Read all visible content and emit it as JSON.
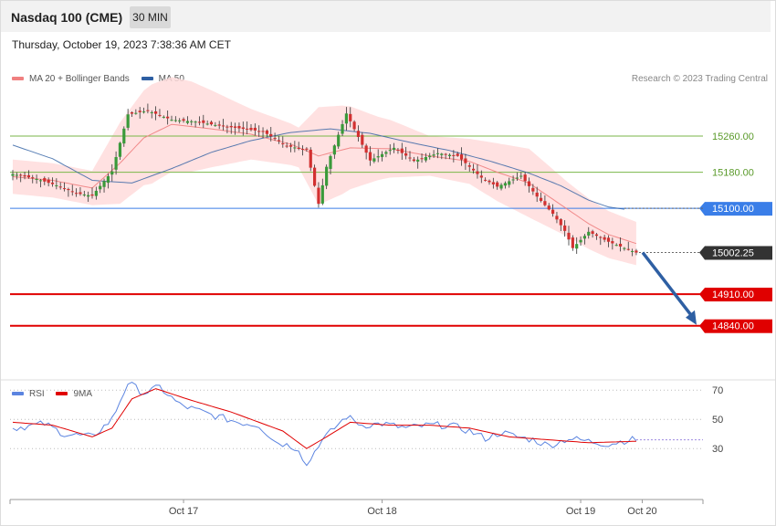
{
  "header": {
    "title": "Nasdaq 100 (CME)",
    "interval": "30 MIN",
    "datetime": "Thursday, October 19, 2023 7:38:36 AM CET",
    "copyright": "Research © 2023 Trading Central"
  },
  "colors": {
    "ma20": "#f08080",
    "ma50": "#2e5fa3",
    "bands_fill": "#ffdcdc",
    "candle_up": "#3a9a3a",
    "candle_down": "#d23030",
    "resistance": "#7ab648",
    "pivot": "#3a7ee8",
    "support": "#e00000",
    "last_price": "#333333",
    "rsi": "#5b84e0",
    "rsi_ma": "#e00000",
    "arrow": "#2e5fa3"
  },
  "chart_data": [
    {
      "type": "candlestick",
      "title": "Nasdaq 100 (CME)",
      "interval": "30 MIN",
      "legend": [
        {
          "name": "MA 20 + Bollinger Bands",
          "color": "#f08080"
        },
        {
          "name": "MA 50",
          "color": "#2e5fa3"
        }
      ],
      "x_labels": [
        "Oct 17",
        "Oct 18",
        "Oct 19",
        "Oct 20"
      ],
      "ylim": [
        14830,
        15440
      ],
      "levels": [
        {
          "label": "15260.00",
          "value": 15260.0,
          "role": "resistance",
          "color": "#7ab648"
        },
        {
          "label": "15180.00",
          "value": 15180.0,
          "role": "resistance",
          "color": "#7ab648"
        },
        {
          "label": "15100.00",
          "value": 15100.0,
          "role": "pivot",
          "color": "#3a7ee8"
        },
        {
          "label": "14910.00",
          "value": 14910.0,
          "role": "support",
          "color": "#e00000"
        },
        {
          "label": "14840.00",
          "value": 14840.0,
          "role": "support",
          "color": "#e00000"
        }
      ],
      "last_price": {
        "label": "15002.25",
        "value": 15002.25
      },
      "forecast_arrow": {
        "from": 15002,
        "to": 14840,
        "direction": "down"
      },
      "close_anchors": [
        [
          0,
          15176
        ],
        [
          6,
          15165
        ],
        [
          12,
          15148
        ],
        [
          16,
          15133
        ],
        [
          20,
          15128
        ],
        [
          25,
          15182
        ],
        [
          29,
          15308
        ],
        [
          34,
          15316
        ],
        [
          40,
          15296
        ],
        [
          46,
          15292
        ],
        [
          52,
          15283
        ],
        [
          58,
          15276
        ],
        [
          63,
          15270
        ],
        [
          69,
          15238
        ],
        [
          74,
          15230
        ],
        [
          77,
          15110
        ],
        [
          79,
          15192
        ],
        [
          84,
          15310
        ],
        [
          87,
          15258
        ],
        [
          90,
          15206
        ],
        [
          96,
          15234
        ],
        [
          101,
          15205
        ],
        [
          107,
          15222
        ],
        [
          112,
          15216
        ],
        [
          118,
          15168
        ],
        [
          122,
          15148
        ],
        [
          128,
          15172
        ],
        [
          132,
          15126
        ],
        [
          136,
          15088
        ],
        [
          139,
          15050
        ],
        [
          141,
          15012
        ],
        [
          145,
          15048
        ],
        [
          150,
          15026
        ],
        [
          154,
          15012
        ],
        [
          157,
          15002
        ]
      ],
      "ma20_anchors": [
        [
          0,
          15170
        ],
        [
          10,
          15162
        ],
        [
          20,
          15145
        ],
        [
          27,
          15200
        ],
        [
          33,
          15256
        ],
        [
          40,
          15286
        ],
        [
          50,
          15276
        ],
        [
          60,
          15264
        ],
        [
          70,
          15242
        ],
        [
          77,
          15216
        ],
        [
          85,
          15234
        ],
        [
          95,
          15232
        ],
        [
          105,
          15216
        ],
        [
          115,
          15204
        ],
        [
          122,
          15180
        ],
        [
          130,
          15156
        ],
        [
          138,
          15108
        ],
        [
          145,
          15066
        ],
        [
          150,
          15042
        ],
        [
          157,
          15022
        ]
      ],
      "ma50_anchors": [
        [
          0,
          15240
        ],
        [
          10,
          15210
        ],
        [
          20,
          15162
        ],
        [
          30,
          15156
        ],
        [
          40,
          15188
        ],
        [
          50,
          15224
        ],
        [
          60,
          15250
        ],
        [
          70,
          15268
        ],
        [
          80,
          15276
        ],
        [
          90,
          15266
        ],
        [
          100,
          15246
        ],
        [
          110,
          15228
        ],
        [
          120,
          15205
        ],
        [
          130,
          15178
        ],
        [
          138,
          15150
        ],
        [
          145,
          15118
        ],
        [
          150,
          15103
        ],
        [
          154,
          15098
        ]
      ],
      "band_width_anchors": [
        [
          0,
          38
        ],
        [
          20,
          38
        ],
        [
          27,
          90
        ],
        [
          35,
          110
        ],
        [
          45,
          100
        ],
        [
          60,
          56
        ],
        [
          72,
          44
        ],
        [
          77,
          108
        ],
        [
          83,
          98
        ],
        [
          92,
          70
        ],
        [
          105,
          44
        ],
        [
          115,
          50
        ],
        [
          122,
          64
        ],
        [
          130,
          76
        ],
        [
          140,
          60
        ],
        [
          150,
          52
        ],
        [
          157,
          48
        ]
      ]
    },
    {
      "type": "line",
      "title": "",
      "series": [
        {
          "name": "RSI",
          "color": "#5b84e0"
        },
        {
          "name": "9MA",
          "color": "#e00000"
        }
      ],
      "y_ticks": [
        70,
        50,
        30
      ],
      "ylim": [
        17,
        80
      ],
      "rsi_anchors": [
        [
          0,
          44
        ],
        [
          8,
          47
        ],
        [
          13,
          40
        ],
        [
          20,
          38
        ],
        [
          25,
          50
        ],
        [
          29,
          75
        ],
        [
          33,
          68
        ],
        [
          37,
          72
        ],
        [
          42,
          60
        ],
        [
          50,
          53
        ],
        [
          57,
          48
        ],
        [
          62,
          46
        ],
        [
          66,
          35
        ],
        [
          72,
          30
        ],
        [
          74,
          18
        ],
        [
          77,
          33
        ],
        [
          81,
          44
        ],
        [
          84,
          52
        ],
        [
          88,
          46
        ],
        [
          93,
          47
        ],
        [
          99,
          44
        ],
        [
          105,
          46
        ],
        [
          110,
          46
        ],
        [
          115,
          42
        ],
        [
          119,
          37
        ],
        [
          123,
          41
        ],
        [
          127,
          38
        ],
        [
          131,
          36
        ],
        [
          135,
          32
        ],
        [
          140,
          37
        ],
        [
          145,
          35
        ],
        [
          150,
          33
        ],
        [
          155,
          36
        ],
        [
          157,
          36
        ]
      ],
      "rsi9_anchors": [
        [
          0,
          48
        ],
        [
          10,
          46
        ],
        [
          20,
          38
        ],
        [
          25,
          44
        ],
        [
          30,
          64
        ],
        [
          36,
          71
        ],
        [
          45,
          63
        ],
        [
          55,
          55
        ],
        [
          62,
          48
        ],
        [
          68,
          42
        ],
        [
          74,
          30
        ],
        [
          79,
          38
        ],
        [
          85,
          48
        ],
        [
          95,
          46
        ],
        [
          105,
          46
        ],
        [
          115,
          44
        ],
        [
          125,
          38
        ],
        [
          135,
          36
        ],
        [
          145,
          34
        ],
        [
          157,
          35
        ]
      ]
    }
  ]
}
